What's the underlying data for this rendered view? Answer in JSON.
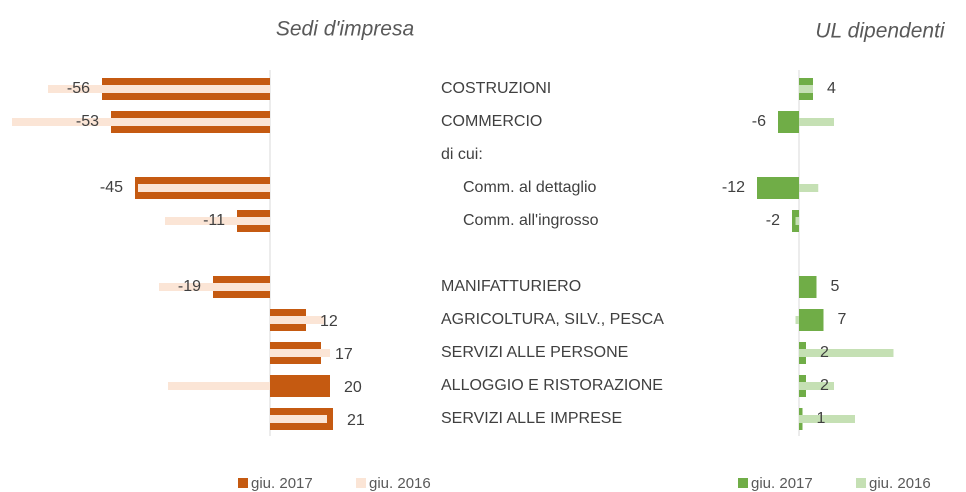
{
  "chart_data": [
    {
      "type": "bar",
      "orientation": "horizontal",
      "title": "Sedi d'impresa",
      "categories": [
        "COSTRUZIONI",
        "COMMERCIO",
        "di cui:",
        "Comm. al dettaglio",
        "Comm. all'ingrosso",
        null,
        "MANIFATTURIERO",
        "AGRICOLTURA, SILV., PESCA",
        "SERVIZI ALLE PERSONE",
        "ALLOGGIO E RISTORAZIONE",
        "SERVIZI ALLE IMPRESE"
      ],
      "series": [
        {
          "name": "giu. 2017",
          "color": "#c55a11",
          "values": [
            -56,
            -53,
            null,
            -45,
            -11,
            null,
            -19,
            12,
            17,
            20,
            21
          ]
        },
        {
          "name": "giu. 2016",
          "color": "#fbe5d6",
          "values": [
            -74,
            -86,
            null,
            -44,
            -35,
            null,
            -37,
            18,
            20,
            -34,
            19
          ]
        }
      ],
      "xlim": [
        -90,
        25
      ]
    },
    {
      "type": "bar",
      "orientation": "horizontal",
      "title": "UL dipendenti",
      "series": [
        {
          "name": "giu. 2017",
          "color": "#70ad47",
          "values": [
            4,
            -6,
            null,
            -12,
            -2,
            null,
            5,
            7,
            2,
            2,
            1
          ]
        },
        {
          "name": "giu. 2016",
          "color": "#c5e0b4",
          "values": [
            4,
            10,
            null,
            5.5,
            -1,
            null,
            0,
            -1,
            27,
            10,
            16
          ]
        }
      ],
      "xlim": [
        -12,
        30
      ]
    }
  ]
}
